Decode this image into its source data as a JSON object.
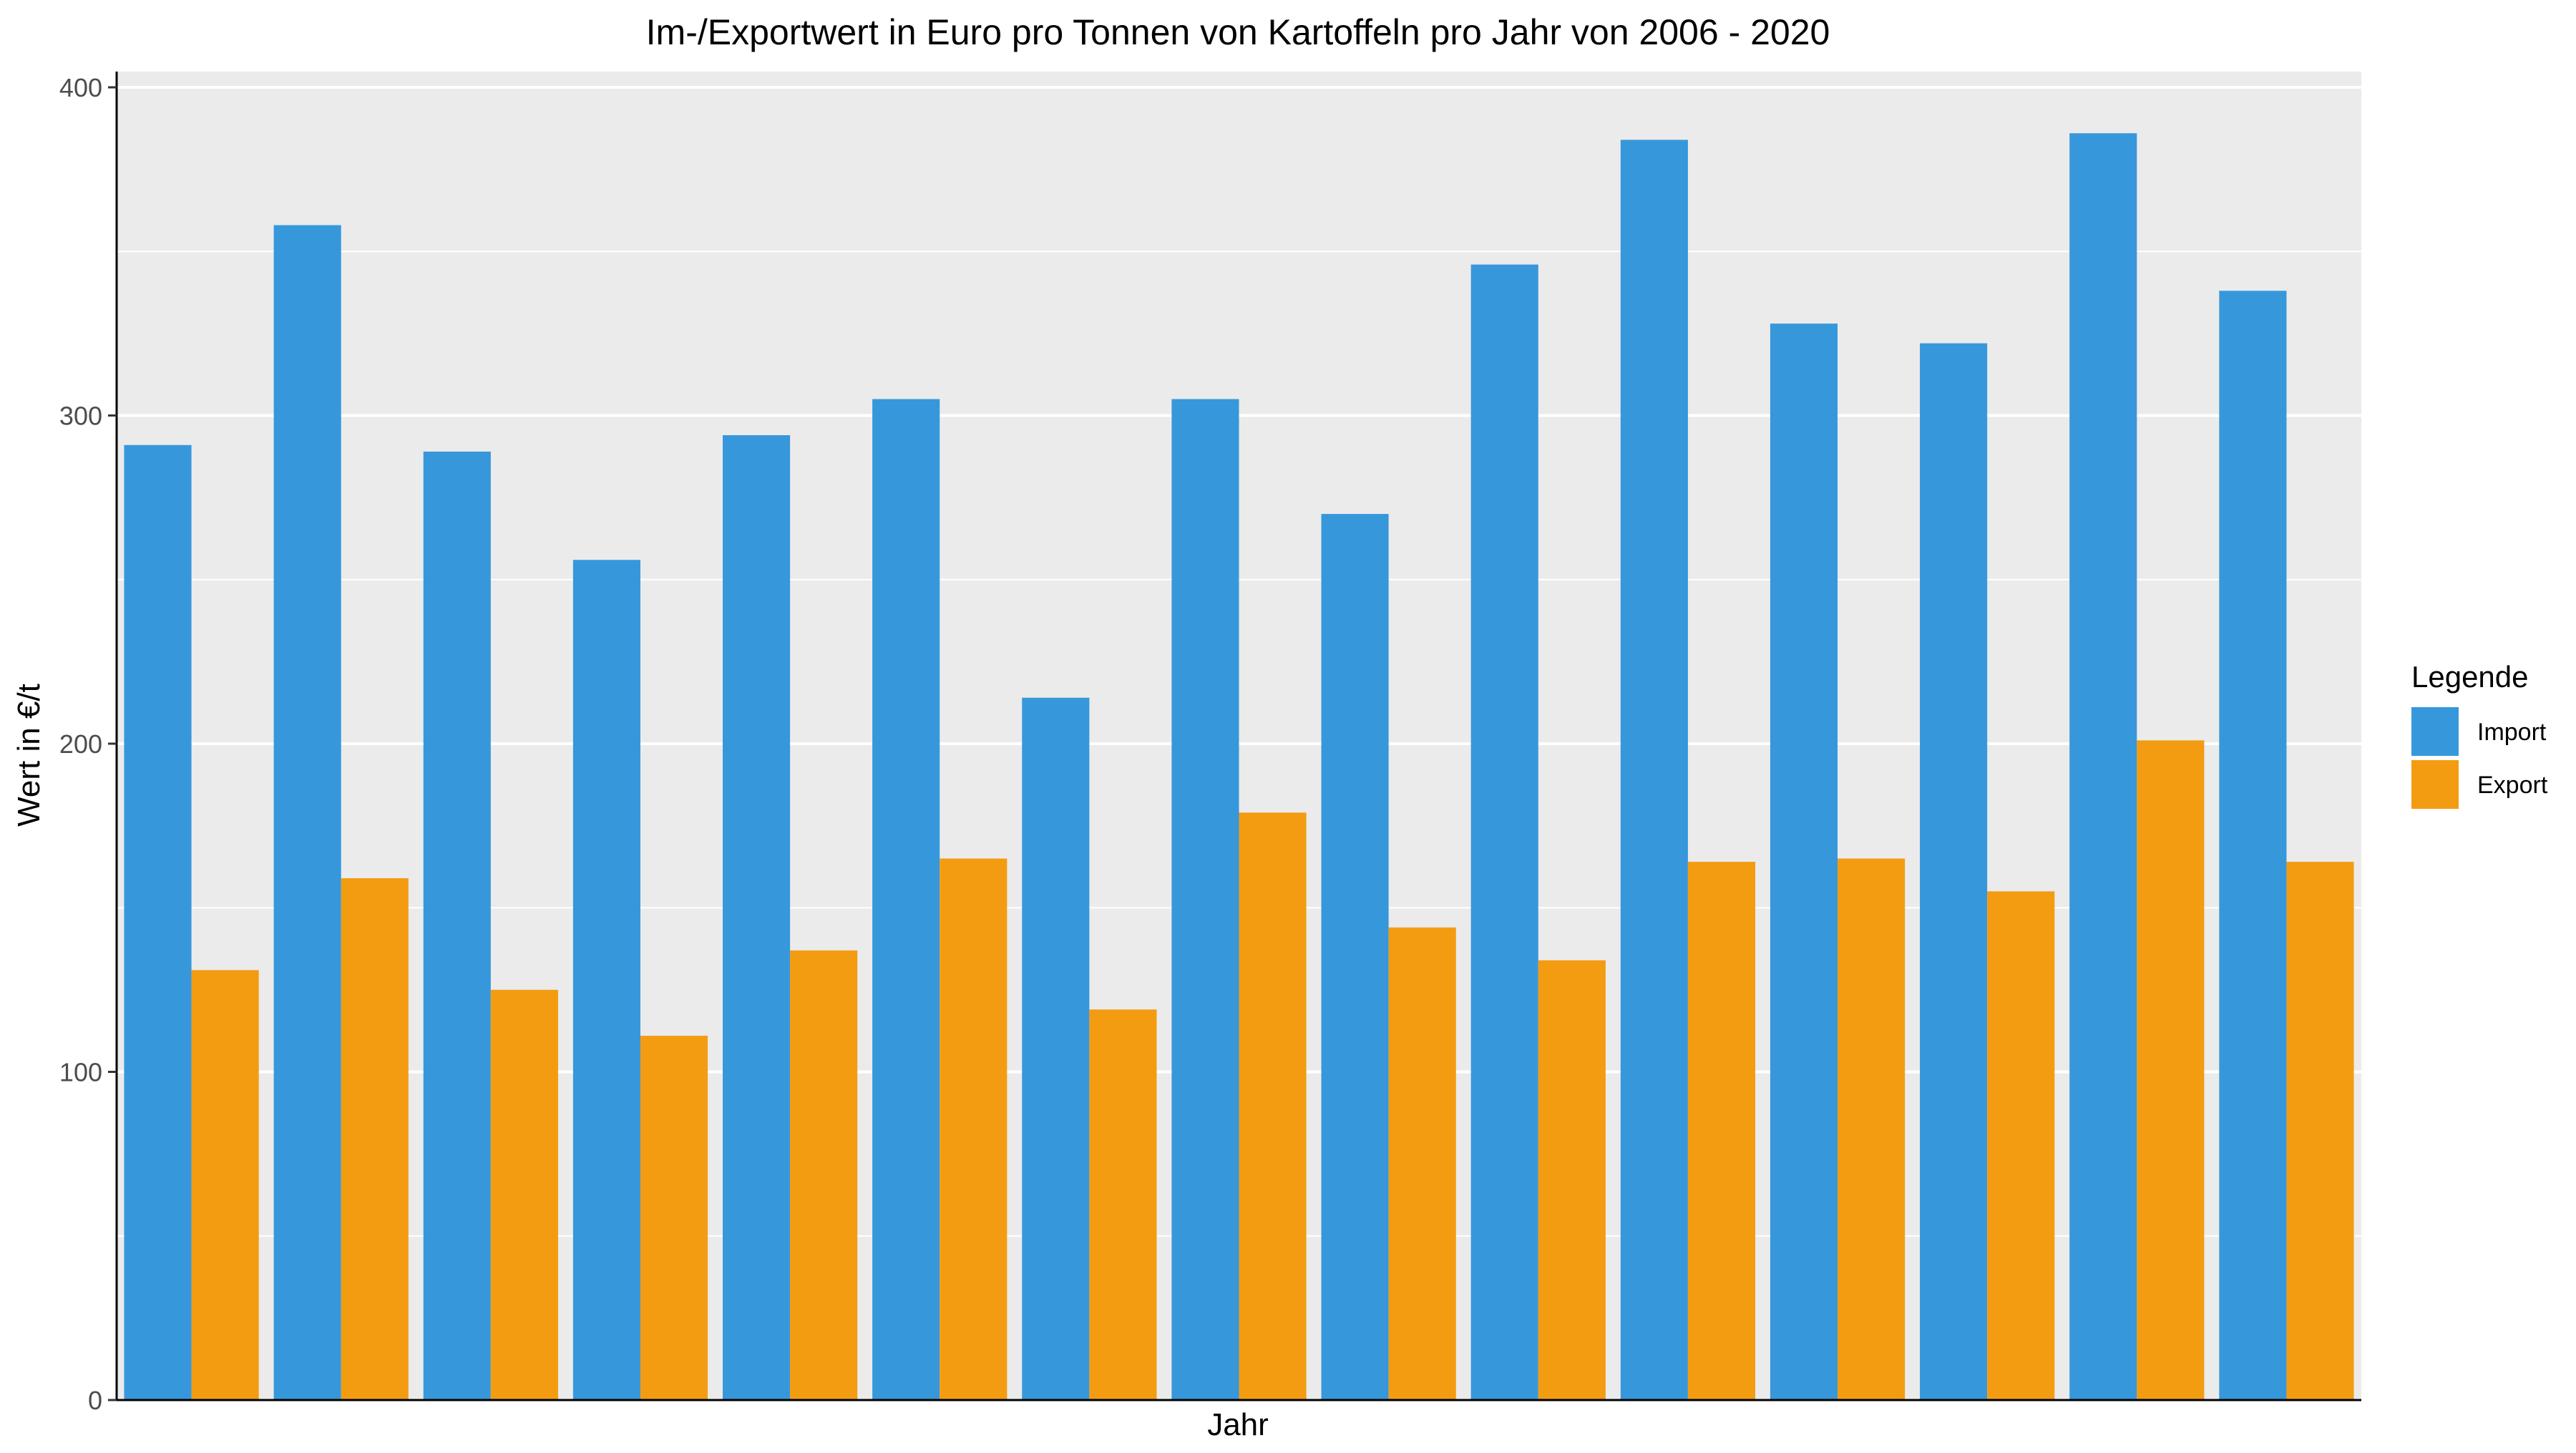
{
  "chart_data": {
    "type": "bar",
    "title": "Im-/Exportwert in Euro pro Tonnen von Kartoffeln pro Jahr von 2006 - 2020",
    "xlabel": "Jahr",
    "ylabel": "Wert in €/t",
    "ylim": [
      0,
      400
    ],
    "yticks": [
      0,
      100,
      200,
      300,
      400
    ],
    "grid": true,
    "legend": {
      "title": "Legende",
      "position": "right"
    },
    "categories": [
      "",
      "",
      "",
      "",
      "",
      "",
      "",
      "",
      "",
      "",
      "",
      "",
      "",
      "",
      ""
    ],
    "series": [
      {
        "name": "Import",
        "color": "#3797db",
        "values": [
          291,
          358,
          289,
          256,
          294,
          305,
          214,
          305,
          270,
          346,
          384,
          328,
          322,
          386,
          338
        ]
      },
      {
        "name": "Export",
        "color": "#f39c12",
        "values": [
          131,
          159,
          125,
          111,
          137,
          165,
          119,
          179,
          144,
          134,
          164,
          165,
          155,
          201,
          164
        ]
      }
    ]
  }
}
